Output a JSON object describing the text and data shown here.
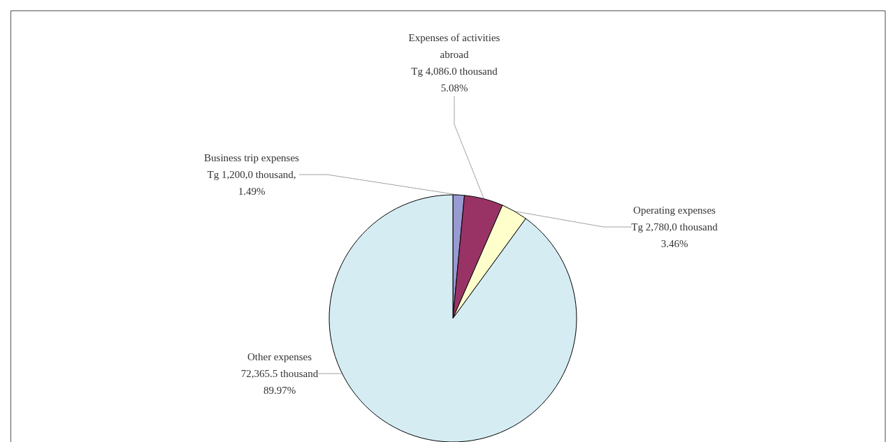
{
  "chart_data": {
    "type": "pie",
    "categories": [
      "Business trip expenses",
      "Expenses of activities\nabroad",
      "Operating expenses",
      "Other expenses"
    ],
    "values": [
      1.49,
      5.08,
      3.46,
      89.97
    ],
    "colors": [
      "#9a9ad2",
      "#993366",
      "#ffffcc",
      "#d5ecf3"
    ],
    "value_labels": [
      "Tg 1,200,0 thousand,\n1.49%",
      "Tg 4,086.0 thousand\n5.08%",
      "Tg 2,780,0 thousand\n3.46%",
      "72,365.5 thousand\n89.97%"
    ]
  }
}
